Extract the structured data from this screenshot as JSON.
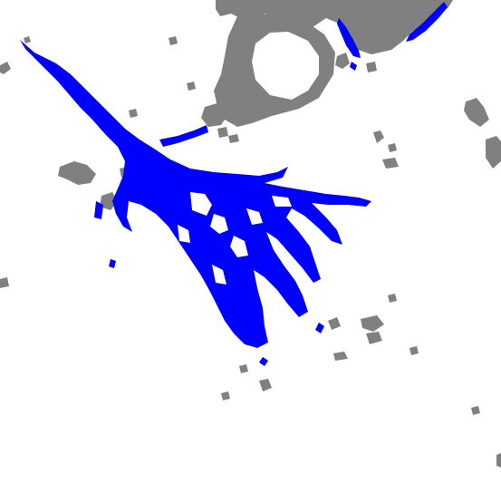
{
  "map": {
    "type": "flood-extent-classification",
    "background_color": "#ffffff",
    "classes": [
      {
        "name": "water",
        "color": "#0000ff"
      },
      {
        "name": "cloud",
        "color": "#808080"
      }
    ]
  }
}
